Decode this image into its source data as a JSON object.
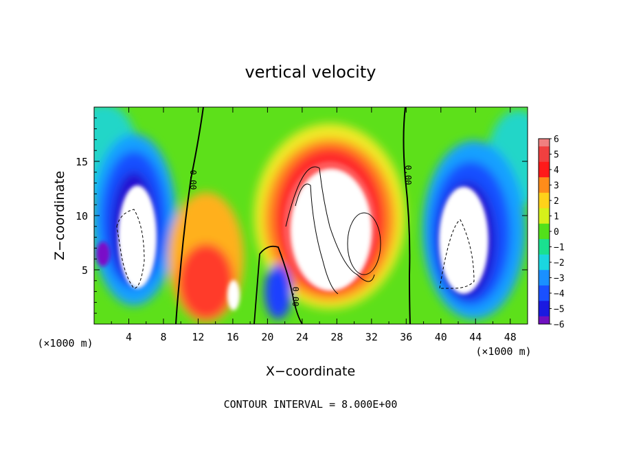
{
  "chart_data": {
    "type": "heatmap",
    "title": "vertical velocity",
    "xlabel": "X−coordinate",
    "ylabel": "Z−coordinate",
    "xlim": [
      0,
      50
    ],
    "ylim": [
      0,
      20
    ],
    "x_ticks": [
      4,
      8,
      12,
      16,
      20,
      24,
      28,
      32,
      36,
      40,
      44,
      48
    ],
    "y_ticks": [
      5,
      10,
      15
    ],
    "x_unit_left": "(×1000 m)",
    "x_unit_right": "(×1000 m)",
    "footer": "CONTOUR INTERVAL = 8.000E+00",
    "colorbar": {
      "levels": [
        6,
        5,
        4,
        3,
        2,
        1,
        0,
        -1,
        -2,
        -3,
        -4,
        -5,
        -6
      ],
      "labels": [
        "6",
        "5",
        "4",
        "3",
        "2",
        "1",
        "0",
        "−1",
        "−2",
        "−3",
        "−4",
        "−5",
        "−6"
      ]
    },
    "contour_labels": [
      "0.00",
      "0.00",
      "0.00"
    ],
    "features": [
      {
        "kind": "updraft",
        "x": 27,
        "z": 11,
        "max": 6
      },
      {
        "kind": "downdraft",
        "x": 5,
        "z": 9,
        "min": -6
      },
      {
        "kind": "downdraft",
        "x": 42,
        "z": 8,
        "min": -6
      }
    ]
  }
}
